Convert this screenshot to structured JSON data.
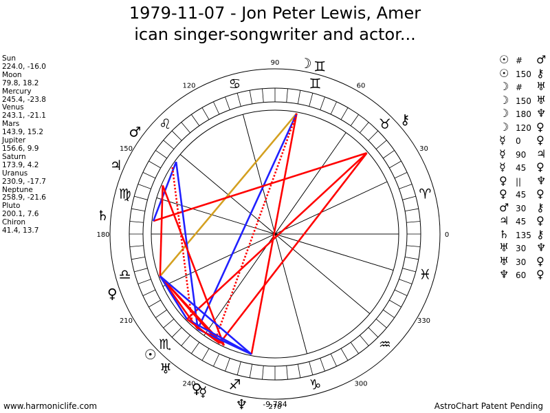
{
  "title_lines": [
    "1979-11-07 - Jon Peter Lewis, Amer",
    "ican singer-songwriter and actor..."
  ],
  "planets": [
    {
      "name": "Sun",
      "coords": "224.0, -16.0"
    },
    {
      "name": "Moon",
      "coords": "79.8, 18.2"
    },
    {
      "name": "Mercury",
      "coords": "245.4, -23.8"
    },
    {
      "name": "Venus",
      "coords": "243.1, -21.1"
    },
    {
      "name": "Mars",
      "coords": "143.9, 15.2"
    },
    {
      "name": "Jupiter",
      "coords": "156.6, 9.9"
    },
    {
      "name": "Saturn",
      "coords": "173.9, 4.2"
    },
    {
      "name": "Uranus",
      "coords": "230.9, -17.7"
    },
    {
      "name": "Neptune",
      "coords": "258.9, -21.6"
    },
    {
      "name": "Pluto",
      "coords": "200.1, 7.6"
    },
    {
      "name": "Chiron",
      "coords": "41.4, 13.7"
    }
  ],
  "aspects": [
    {
      "p1": "☉",
      "angle": "#",
      "p2": "♂"
    },
    {
      "p1": "☉",
      "angle": "150",
      "p2": "⚷"
    },
    {
      "p1": "☽",
      "angle": "#",
      "p2": "♅"
    },
    {
      "p1": "☽",
      "angle": "150",
      "p2": "♅"
    },
    {
      "p1": "☽",
      "angle": "180",
      "p2": "♆"
    },
    {
      "p1": "☽",
      "angle": "120",
      "p2": "♀"
    },
    {
      "p1": "☿",
      "angle": "0",
      "p2": "♀"
    },
    {
      "p1": "☿",
      "angle": "90",
      "p2": "♃"
    },
    {
      "p1": "☿",
      "angle": "45",
      "p2": "♀"
    },
    {
      "p1": "♀",
      "angle": "||",
      "p2": "♆"
    },
    {
      "p1": "♀",
      "angle": "45",
      "p2": "♀"
    },
    {
      "p1": "♂",
      "angle": "30",
      "p2": "⚷"
    },
    {
      "p1": "♃",
      "angle": "45",
      "p2": "♀"
    },
    {
      "p1": "♄",
      "angle": "135",
      "p2": "⚷"
    },
    {
      "p1": "♅",
      "angle": "30",
      "p2": "♆"
    },
    {
      "p1": "♅",
      "angle": "30",
      "p2": "♀"
    },
    {
      "p1": "♆",
      "angle": "60",
      "p2": "♀"
    }
  ],
  "degree_labels": [
    {
      "deg": 0,
      "text": "0"
    },
    {
      "deg": 30,
      "text": "30"
    },
    {
      "deg": 60,
      "text": "60"
    },
    {
      "deg": 90,
      "text": "90"
    },
    {
      "deg": 120,
      "text": "120"
    },
    {
      "deg": 150,
      "text": "150"
    },
    {
      "deg": 180,
      "text": "180"
    },
    {
      "deg": 210,
      "text": "210"
    },
    {
      "deg": 240,
      "text": "240"
    },
    {
      "deg": 270,
      "text": "270"
    },
    {
      "deg": 300,
      "text": "300"
    },
    {
      "deg": 330,
      "text": "330"
    }
  ],
  "zodiac_signs": [
    "♈",
    "♉",
    "♊",
    "♋",
    "♌",
    "♍",
    "♎",
    "♏",
    "♐",
    "♑",
    "♒",
    "♓"
  ],
  "chart_glyphs": [
    {
      "name": "moon",
      "symbol": "☽",
      "lon": 79.8
    },
    {
      "name": "gemini-mark",
      "symbol": "♊",
      "lon": 75
    },
    {
      "name": "chiron",
      "symbol": "⚷",
      "lon": 41.4
    },
    {
      "name": "mars",
      "symbol": "♂",
      "lon": 143.9
    },
    {
      "name": "jupiter",
      "symbol": "♃",
      "lon": 156.6
    },
    {
      "name": "saturn",
      "symbol": "♄",
      "lon": 173.9
    },
    {
      "name": "pluto",
      "symbol": "♀",
      "lon": 200.1
    },
    {
      "name": "sun",
      "symbol": "☉",
      "lon": 224.0
    },
    {
      "name": "uranus",
      "symbol": "♅",
      "lon": 230.9
    },
    {
      "name": "venus",
      "symbol": "♀",
      "lon": 243.1
    },
    {
      "name": "mercury",
      "symbol": "☿",
      "lon": 245.4
    },
    {
      "name": "neptune",
      "symbol": "♆",
      "lon": 258.9
    }
  ],
  "house_cusps": [
    0,
    25,
    55,
    105,
    140,
    163,
    180,
    205,
    235,
    285,
    320,
    343
  ],
  "aspect_lines": [
    {
      "a": 79.8,
      "b": 200.1,
      "color": "#d4a020"
    },
    {
      "a": 79.8,
      "b": 258.9,
      "color": "#ff0000"
    },
    {
      "a": 79.8,
      "b": 230.9,
      "color": "#2020ff"
    },
    {
      "a": 79.8,
      "b": 240.6,
      "color": "#ff0000",
      "dotted": true
    },
    {
      "a": 41.4,
      "b": 173.9,
      "color": "#ff0000"
    },
    {
      "a": 41.4,
      "b": 224.0,
      "color": "#ff0000"
    },
    {
      "a": 41.4,
      "b": 243.1,
      "color": "#ff0000"
    },
    {
      "a": 143.9,
      "b": 173.9,
      "color": "#2020ff"
    },
    {
      "a": 143.9,
      "b": 230.9,
      "color": "#2020ff"
    },
    {
      "a": 147.0,
      "b": 227.5,
      "color": "#ff0000",
      "dotted": true
    },
    {
      "a": 156.6,
      "b": 200.1,
      "color": "#ff0000"
    },
    {
      "a": 156.6,
      "b": 245.4,
      "color": "#ff0000"
    },
    {
      "a": 200.1,
      "b": 230.9,
      "color": "#ff0000"
    },
    {
      "a": 200.1,
      "b": 243.1,
      "color": "#ff0000"
    },
    {
      "a": 200.1,
      "b": 245.4,
      "color": "#ff0000"
    },
    {
      "a": 200.1,
      "b": 258.9,
      "color": "#2020ff"
    },
    {
      "a": 200.1,
      "b": 224.0,
      "color": "#2020ff"
    },
    {
      "a": 224.0,
      "b": 258.9,
      "color": "#2020ff"
    },
    {
      "a": 230.9,
      "b": 258.9,
      "color": "#2020ff"
    },
    {
      "a": 224.0,
      "b": 243.1,
      "color": "#ff0000"
    }
  ],
  "bottom_value": "-9,784",
  "footer_left": "www.harmoniclife.com",
  "footer_right": "AstroChart Patent Pending"
}
